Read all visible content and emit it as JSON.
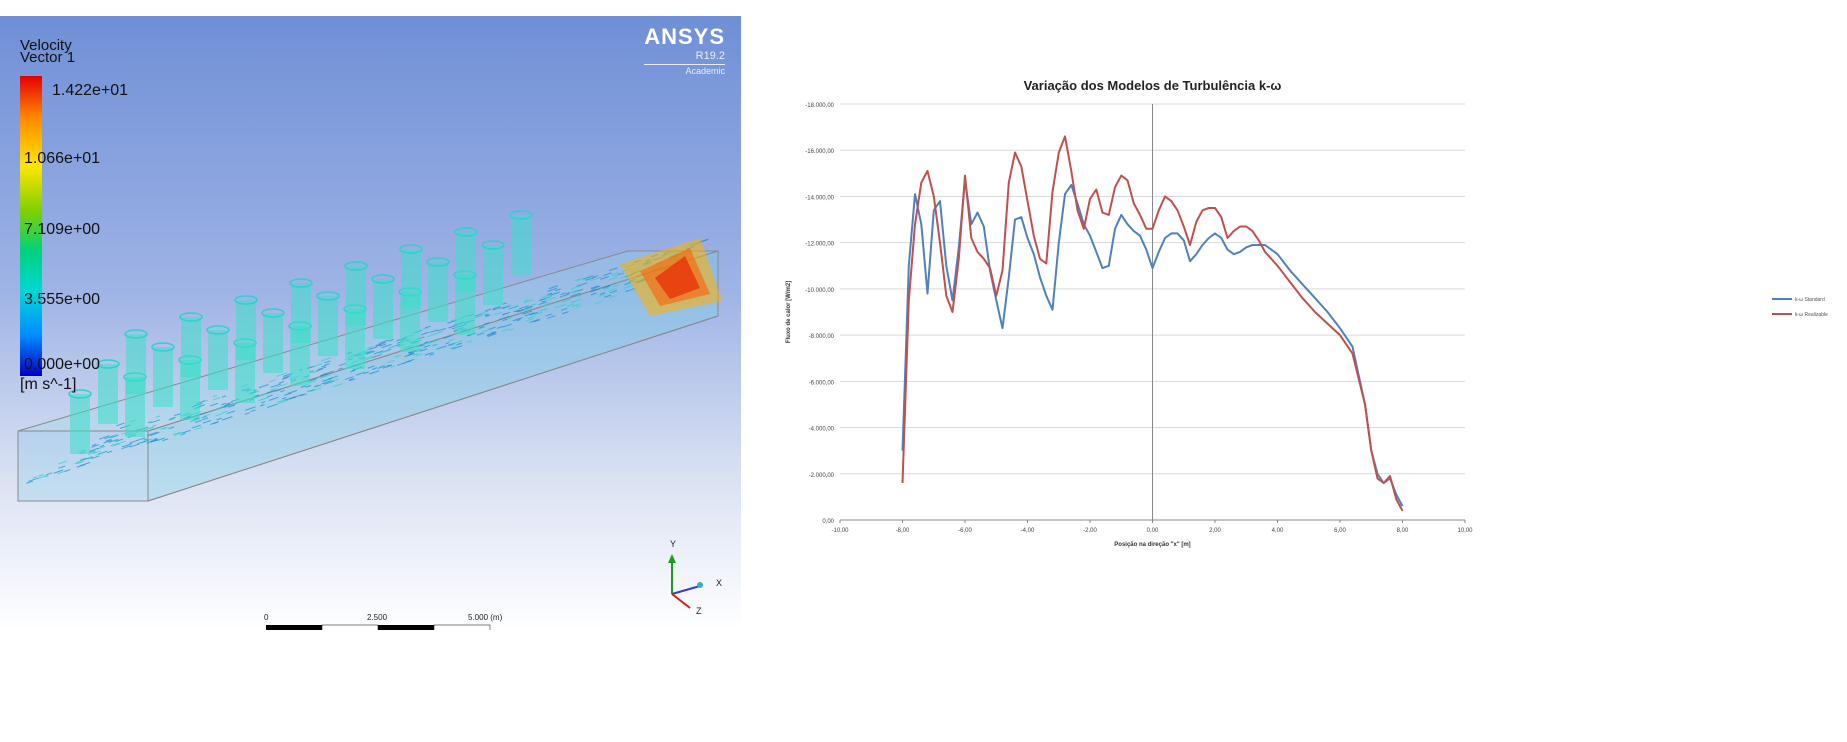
{
  "cfd": {
    "legend": {
      "title_line1": "Velocity",
      "title_line2": "Vector 1",
      "values": [
        "1.422e+01",
        "1.066e+01",
        "7.109e+00",
        "3.555e+00",
        "0.000e+00"
      ],
      "unit": "[m s^-1]"
    },
    "logo": {
      "name": "ANSYS",
      "version": "R19.2",
      "edition": "Academic"
    },
    "scale": {
      "ticks": [
        "0",
        "2.500",
        "5.000 (m)"
      ]
    },
    "axes": {
      "y": "Y",
      "x": "X",
      "z": "Z"
    }
  },
  "chart_data": {
    "type": "line",
    "title": "Variação dos Modelos de Turbulência k-ω",
    "xlabel": "Posição na direção \"x\" [m]",
    "ylabel": "Fluxo de calor [W/m2]",
    "xlim": [
      -10,
      10
    ],
    "ylim": [
      0,
      18000
    ],
    "x_ticks": [
      "-10,00",
      "-8,00",
      "-6,00",
      "-4,00",
      "-2,00",
      "0,00",
      "2,00",
      "4,00",
      "6,00",
      "8,00",
      "10,00"
    ],
    "y_ticks": [
      "0,00",
      "-2.000,00",
      "-4.000,00",
      "-6.000,00",
      "-8.000,00",
      "-10.000,00",
      "-12.000,00",
      "-14.000,00",
      "-16.000,00",
      "-18.000,00"
    ],
    "grid": true,
    "legend_position": "right",
    "series": [
      {
        "name": "k-ω Standard",
        "color": "#4f81bd",
        "x": [
          -8.0,
          -7.8,
          -7.6,
          -7.4,
          -7.2,
          -7.0,
          -6.8,
          -6.6,
          -6.4,
          -6.2,
          -6.0,
          -5.8,
          -5.6,
          -5.4,
          -5.2,
          -5.0,
          -4.8,
          -4.6,
          -4.4,
          -4.2,
          -4.0,
          -3.8,
          -3.6,
          -3.4,
          -3.2,
          -3.0,
          -2.8,
          -2.6,
          -2.4,
          -2.2,
          -2.0,
          -1.8,
          -1.6,
          -1.4,
          -1.2,
          -1.0,
          -0.8,
          -0.6,
          -0.4,
          -0.2,
          0.0,
          0.2,
          0.4,
          0.6,
          0.8,
          1.0,
          1.2,
          1.4,
          1.6,
          1.8,
          2.0,
          2.2,
          2.4,
          2.6,
          2.8,
          3.0,
          3.2,
          3.4,
          3.6,
          3.8,
          4.0,
          4.4,
          4.8,
          5.2,
          5.6,
          6.0,
          6.4,
          6.8,
          7.0,
          7.2,
          7.4,
          7.6,
          7.8,
          8.0
        ],
        "values": [
          3000,
          11000,
          14100,
          12800,
          9800,
          13400,
          13800,
          11000,
          9500,
          11800,
          14700,
          12800,
          13300,
          12700,
          10800,
          9500,
          8300,
          10500,
          13000,
          13100,
          12200,
          11500,
          10500,
          9700,
          9100,
          12000,
          14100,
          14500,
          13700,
          12800,
          12300,
          11600,
          10900,
          11000,
          12600,
          13200,
          12800,
          12500,
          12300,
          11700,
          10900,
          11600,
          12200,
          12400,
          12400,
          12100,
          11200,
          11500,
          11900,
          12200,
          12400,
          12200,
          11700,
          11500,
          11600,
          11800,
          11900,
          11900,
          11900,
          11700,
          11500,
          10800,
          10200,
          9600,
          9000,
          8300,
          7500,
          5000,
          3000,
          2000,
          1600,
          1800,
          1100,
          600
        ]
      },
      {
        "name": "k-ω Realizable",
        "color": "#c0504d",
        "x": [
          -8.0,
          -7.8,
          -7.6,
          -7.4,
          -7.2,
          -7.0,
          -6.8,
          -6.6,
          -6.4,
          -6.2,
          -6.0,
          -5.8,
          -5.6,
          -5.4,
          -5.2,
          -5.0,
          -4.8,
          -4.6,
          -4.4,
          -4.2,
          -4.0,
          -3.8,
          -3.6,
          -3.4,
          -3.2,
          -3.0,
          -2.8,
          -2.6,
          -2.4,
          -2.2,
          -2.0,
          -1.8,
          -1.6,
          -1.4,
          -1.2,
          -1.0,
          -0.8,
          -0.6,
          -0.4,
          -0.2,
          0.0,
          0.2,
          0.4,
          0.6,
          0.8,
          1.0,
          1.2,
          1.4,
          1.6,
          1.8,
          2.0,
          2.2,
          2.4,
          2.6,
          2.8,
          3.0,
          3.2,
          3.4,
          3.6,
          3.8,
          4.0,
          4.4,
          4.8,
          5.2,
          5.6,
          6.0,
          6.4,
          6.8,
          7.0,
          7.2,
          7.4,
          7.6,
          7.8,
          8.0
        ],
        "values": [
          1600,
          9500,
          12800,
          14600,
          15100,
          14000,
          12000,
          9700,
          9000,
          11300,
          14900,
          12200,
          11600,
          11300,
          10900,
          9700,
          10800,
          14600,
          15900,
          15300,
          13800,
          12300,
          11300,
          11100,
          14200,
          15900,
          16600,
          15100,
          13400,
          12600,
          13900,
          14300,
          13300,
          13200,
          14400,
          14900,
          14700,
          13700,
          13200,
          12600,
          12600,
          13400,
          14000,
          13800,
          13400,
          12700,
          11900,
          12900,
          13400,
          13500,
          13500,
          13100,
          12200,
          12500,
          12700,
          12700,
          12500,
          12100,
          11600,
          11300,
          11000,
          10300,
          9600,
          9000,
          8500,
          8000,
          7200,
          5000,
          3000,
          1800,
          1600,
          1900,
          900,
          400
        ]
      }
    ]
  }
}
